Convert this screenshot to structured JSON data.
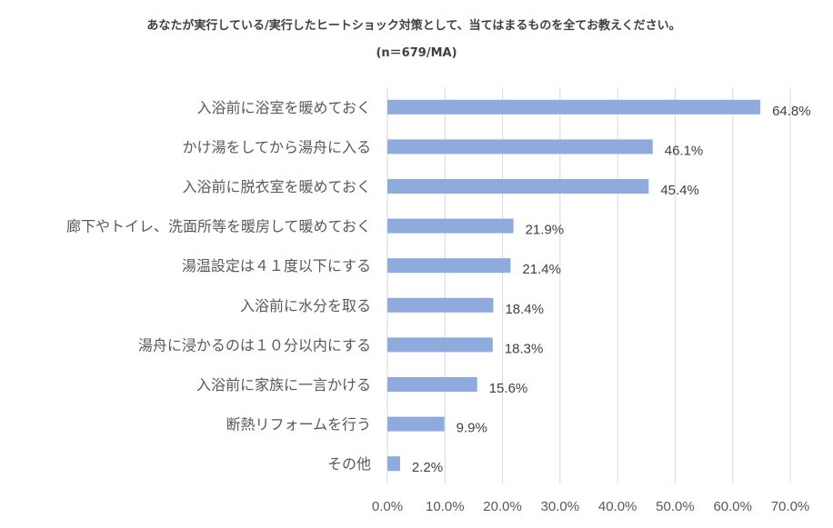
{
  "chart_data": {
    "type": "bar",
    "orientation": "horizontal",
    "title": "あなたが実行している/実行したヒートショック対策として、当てはまるものを全てお教えください。",
    "subtitle": "(n＝679/MA)",
    "categories": [
      "入浴前に浴室を暖めておく",
      "かけ湯をしてから湯舟に入る",
      "入浴前に脱衣室を暖めておく",
      "廊下やトイレ、洗面所等を暖房して暖めておく",
      "湯温設定は４１度以下にする",
      "入浴前に水分を取る",
      "湯舟に浸かるのは１０分以内にする",
      "入浴前に家族に一言かける",
      "断熱リフォームを行う",
      "その他"
    ],
    "values": [
      64.8,
      46.1,
      45.4,
      21.9,
      21.4,
      18.4,
      18.3,
      15.6,
      9.9,
      2.2
    ],
    "value_labels": [
      "64.8%",
      "46.1%",
      "45.4%",
      "21.9%",
      "21.4%",
      "18.4%",
      "18.3%",
      "15.6%",
      "9.9%",
      "2.2%"
    ],
    "xlim": [
      0,
      70
    ],
    "x_ticks": [
      "0.0%",
      "10.0%",
      "20.0%",
      "30.0%",
      "40.0%",
      "50.0%",
      "60.0%",
      "70.0%"
    ],
    "grid": "vertical",
    "legend": "none",
    "bar_color": "#8faadc"
  }
}
